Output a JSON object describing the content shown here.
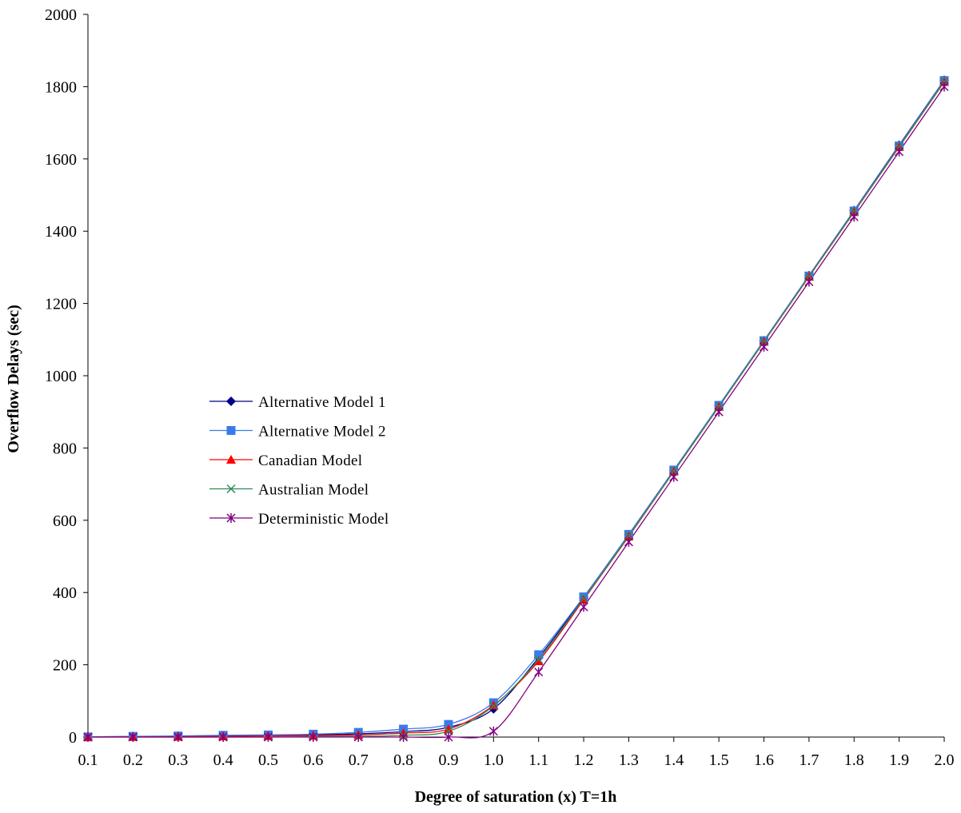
{
  "chart_data": {
    "type": "line",
    "title": "",
    "xlabel": "Degree of saturation (x)  T=1h",
    "ylabel": "Overflow Delays (sec)",
    "categories": [
      "0.1",
      "0.2",
      "0.3",
      "0.4",
      "0.5",
      "0.6",
      "0.7",
      "0.8",
      "0.9",
      "1.0",
      "1.1",
      "1.2",
      "1.3",
      "1.4",
      "1.5",
      "1.6",
      "1.7",
      "1.8",
      "1.9",
      "2.0"
    ],
    "x": [
      0.1,
      0.2,
      0.3,
      0.4,
      0.5,
      0.6,
      0.7,
      0.8,
      0.9,
      1.0,
      1.1,
      1.2,
      1.3,
      1.4,
      1.5,
      1.6,
      1.7,
      1.8,
      1.9,
      2.0
    ],
    "ylim": [
      0,
      2000
    ],
    "yticks": [
      "0",
      "200",
      "400",
      "600",
      "800",
      "1000",
      "1200",
      "1400",
      "1600",
      "1800",
      "2000"
    ],
    "grid": false,
    "legend_position": "middle-left",
    "series": [
      {
        "name": "Alternative Model 1",
        "color": "#00008B",
        "marker": "diamond",
        "values": [
          0.3,
          1,
          2,
          3,
          4,
          6,
          9,
          15,
          27,
          78,
          220,
          385,
          560,
          738,
          917,
          1097,
          1277,
          1457,
          1638,
          1818
        ]
      },
      {
        "name": "Alternative Model 2",
        "color": "#3A7BEA",
        "marker": "square",
        "values": [
          0.5,
          2,
          3,
          5,
          6,
          8,
          13,
          22,
          35,
          95,
          228,
          388,
          561,
          739,
          918,
          1097,
          1276,
          1456,
          1636,
          1817
        ]
      },
      {
        "name": "Canadian Model",
        "color": "#FF0000",
        "marker": "triangle",
        "values": [
          0.2,
          0.5,
          1,
          2,
          3,
          4,
          6,
          11,
          22,
          88,
          210,
          380,
          555,
          735,
          914,
          1094,
          1274,
          1453,
          1633,
          1813
        ]
      },
      {
        "name": "Australian Model",
        "color": "#2E8B57",
        "marker": "x",
        "values": [
          0,
          0,
          0,
          0,
          0,
          1,
          2,
          5,
          16,
          86,
          215,
          383,
          557,
          736,
          915,
          1095,
          1275,
          1454,
          1634,
          1814
        ]
      },
      {
        "name": "Deterministic Model",
        "color": "#800080",
        "marker": "star",
        "values": [
          0,
          0,
          0,
          0,
          0,
          0,
          0,
          0,
          0,
          16,
          180,
          360,
          540,
          720,
          900,
          1080,
          1260,
          1440,
          1620,
          1800
        ]
      }
    ]
  }
}
